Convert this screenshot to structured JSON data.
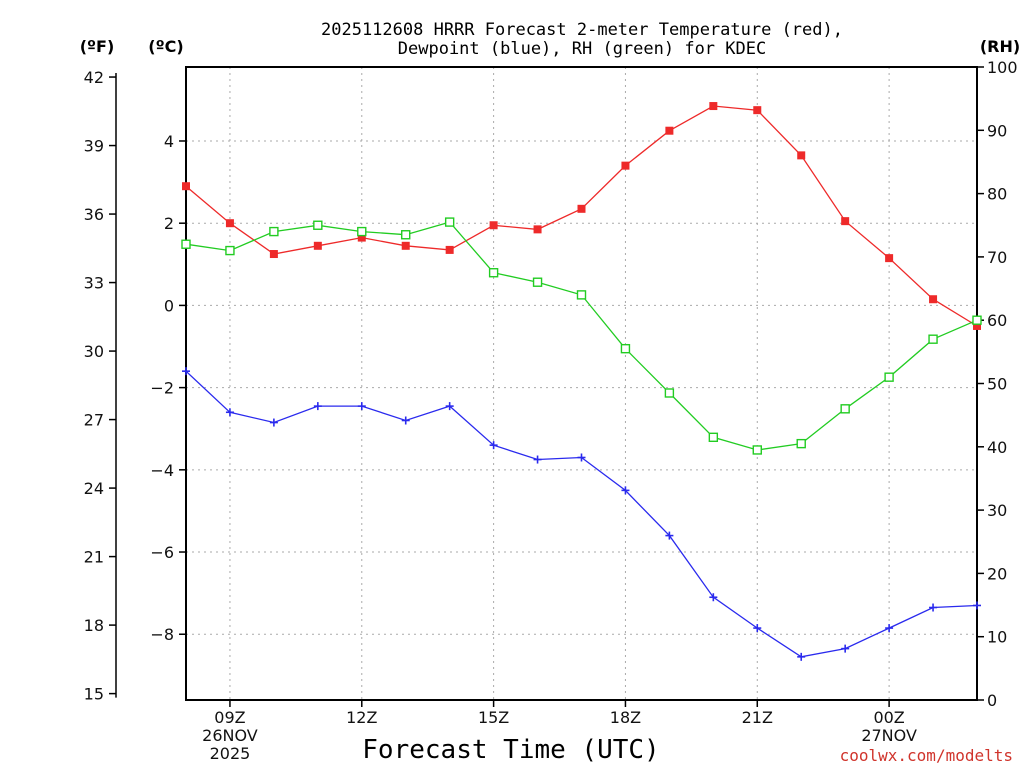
{
  "chart_data": {
    "type": "line",
    "title": [
      "2025112608 HRRR Forecast 2-meter Temperature (red),",
      "Dewpoint (blue), RH (green) for KDEC"
    ],
    "xlabel": "Forecast Time (UTC)",
    "units": {
      "left_outer": "(ºF)",
      "left_inner": "(ºC)",
      "right": "(RH)"
    },
    "branding": "coolwx.com/modelts",
    "x_hours": [
      8,
      9,
      10,
      11,
      12,
      13,
      14,
      15,
      16,
      17,
      18,
      19,
      20,
      21,
      22,
      23,
      24,
      25,
      26
    ],
    "xlim": [
      8,
      26
    ],
    "x_ticks": [
      {
        "hour": 9,
        "lines": [
          "09Z",
          "26NOV",
          "2025"
        ]
      },
      {
        "hour": 12,
        "lines": [
          "12Z"
        ]
      },
      {
        "hour": 15,
        "lines": [
          "15Z"
        ]
      },
      {
        "hour": 18,
        "lines": [
          "18Z"
        ]
      },
      {
        "hour": 21,
        "lines": [
          "21Z"
        ]
      },
      {
        "hour": 24,
        "lines": [
          "00Z",
          "27NOV"
        ]
      }
    ],
    "ylim_c": [
      -9.6,
      5.8
    ],
    "y_ticks_c": [
      4,
      2,
      0,
      -2,
      -4,
      -6,
      -8
    ],
    "y_ticks_c_labels": [
      "4",
      "2",
      "0",
      "−2",
      "−4",
      "−6",
      "−8"
    ],
    "y_ticks_f": [
      42,
      39,
      36,
      33,
      30,
      27,
      24,
      21,
      18,
      15
    ],
    "ylim_rh": [
      0,
      100
    ],
    "y_ticks_rh": [
      100,
      90,
      80,
      70,
      60,
      50,
      40,
      30,
      20,
      10,
      0
    ],
    "series": [
      {
        "name": "Temperature",
        "color": "#ee2a2a",
        "marker": "filled-square",
        "axis": "C",
        "values": [
          2.9,
          2.0,
          1.25,
          1.45,
          1.65,
          1.45,
          1.35,
          1.95,
          1.85,
          2.35,
          3.4,
          4.25,
          4.85,
          4.75,
          3.65,
          2.05,
          1.15,
          0.15,
          -0.5
        ]
      },
      {
        "name": "Dewpoint",
        "color": "#2a2aee",
        "marker": "plus",
        "axis": "C",
        "values": [
          -1.6,
          -2.6,
          -2.85,
          -2.45,
          -2.45,
          -2.8,
          -2.45,
          -3.4,
          -3.75,
          -3.7,
          -4.5,
          -5.6,
          -7.1,
          -7.85,
          -8.55,
          -8.35,
          -7.85,
          -7.35,
          -7.3
        ]
      },
      {
        "name": "RH",
        "color": "#22cc22",
        "marker": "open-square",
        "axis": "RH",
        "values": [
          72,
          71,
          74,
          75,
          74,
          73.5,
          75.5,
          67.5,
          66,
          64,
          55.5,
          48.5,
          41.5,
          39.5,
          40.5,
          46,
          51,
          57,
          60
        ]
      }
    ]
  }
}
